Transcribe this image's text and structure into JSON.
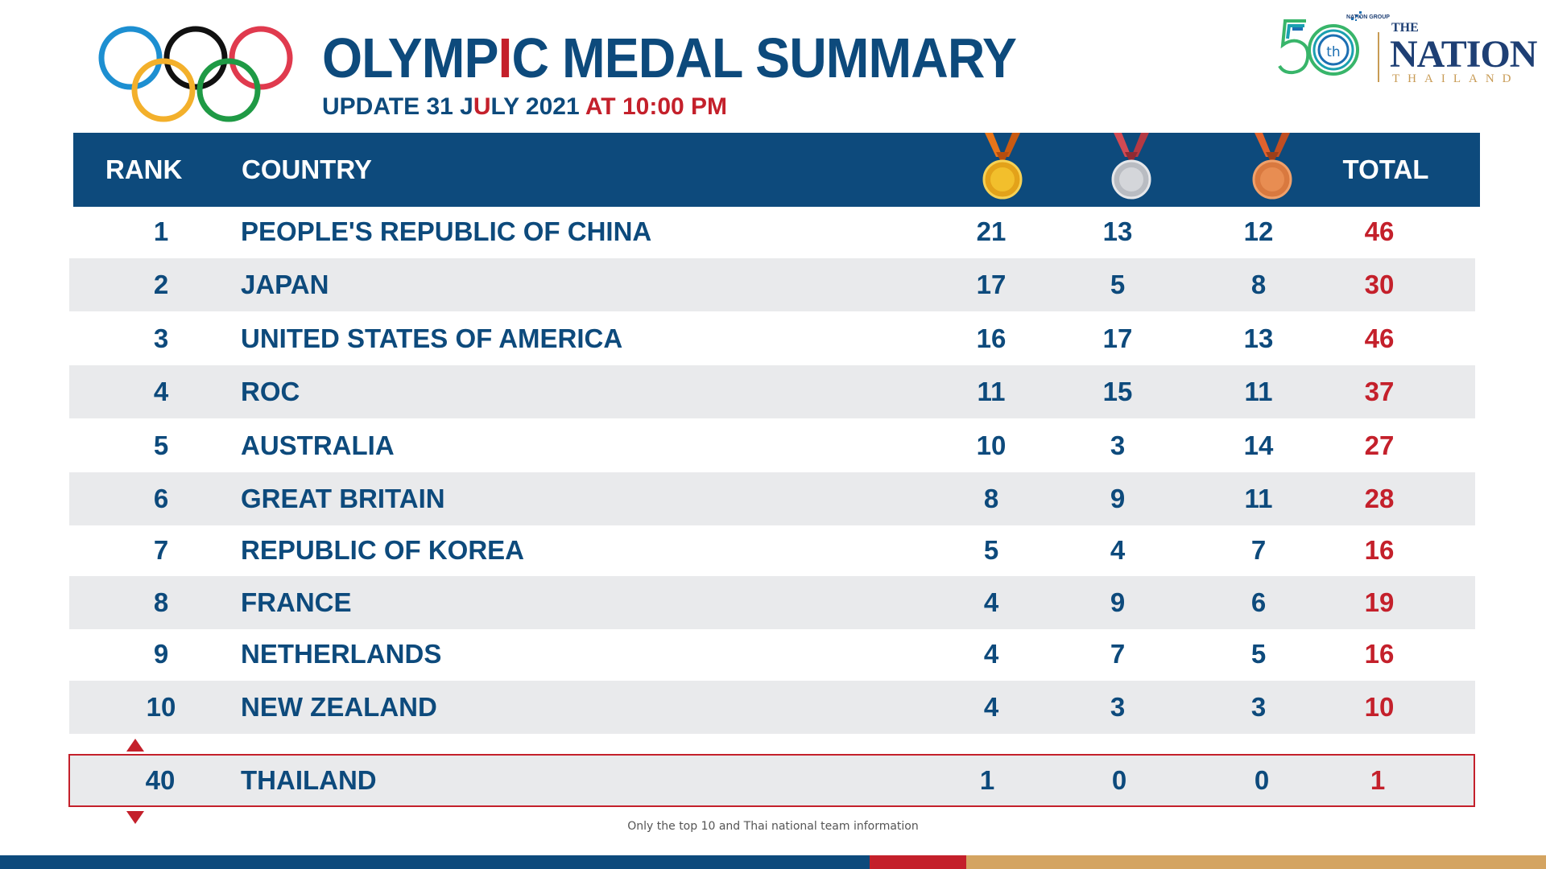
{
  "header": {
    "title_part1": "OLYMP",
    "title_i": "I",
    "title_part2": "C MEDAL SUMMARY",
    "update_prefix": "UPDATE 31 J",
    "update_u": "U",
    "update_mid": "LY 2021 ",
    "update_time": "AT 10:00 PM"
  },
  "brand": {
    "group_label": "NATION GROUP",
    "fifty_suffix": "th",
    "the": "THE",
    "nation": "NATION",
    "thailand": "THAILAND"
  },
  "columns": {
    "rank": "RANK",
    "country": "COUNTRY",
    "total": "TOTAL"
  },
  "medal_icons": {
    "gold": "gold-medal-icon",
    "silver": "silver-medal-icon",
    "bronze": "bronze-medal-icon"
  },
  "rows": [
    {
      "rank": "1",
      "country": "PEOPLE'S REPUBLIC OF CHINA",
      "gold": "21",
      "silver": "13",
      "bronze": "12",
      "total": "46"
    },
    {
      "rank": "2",
      "country": "JAPAN",
      "gold": "17",
      "silver": "5",
      "bronze": "8",
      "total": "30"
    },
    {
      "rank": "3",
      "country": "UNITED STATES OF AMERICA",
      "gold": "16",
      "silver": "17",
      "bronze": "13",
      "total": "46"
    },
    {
      "rank": "4",
      "country": "ROC",
      "gold": "11",
      "silver": "15",
      "bronze": "11",
      "total": "37"
    },
    {
      "rank": "5",
      "country": "AUSTRALIA",
      "gold": "10",
      "silver": "3",
      "bronze": "14",
      "total": "27"
    },
    {
      "rank": "6",
      "country": "GREAT BRITAIN",
      "gold": "8",
      "silver": "9",
      "bronze": "11",
      "total": "28"
    },
    {
      "rank": "7",
      "country": "REPUBLIC OF KOREA",
      "gold": "5",
      "silver": "4",
      "bronze": "7",
      "total": "16"
    },
    {
      "rank": "8",
      "country": "FRANCE",
      "gold": "4",
      "silver": "9",
      "bronze": "6",
      "total": "19"
    },
    {
      "rank": "9",
      "country": "NETHERLANDS",
      "gold": "4",
      "silver": "7",
      "bronze": "5",
      "total": "16"
    },
    {
      "rank": "10",
      "country": "NEW ZEALAND",
      "gold": "4",
      "silver": "3",
      "bronze": "3",
      "total": "10"
    }
  ],
  "thailand": {
    "rank": "40",
    "country": "THAILAND",
    "gold": "1",
    "silver": "0",
    "bronze": "0",
    "total": "1"
  },
  "footnote": "Only the top 10 and Thai national team information",
  "colors": {
    "navy": "#0d4a7c",
    "red": "#c4202b",
    "gold_accent": "#d4a461",
    "row_shade": "#e9eaec"
  }
}
